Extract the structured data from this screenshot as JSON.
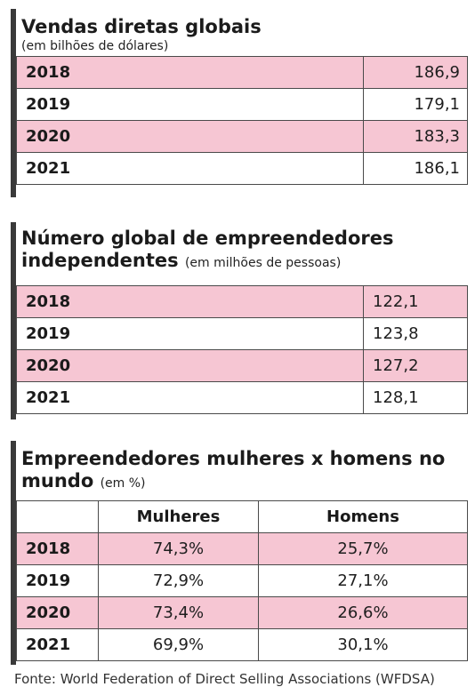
{
  "sales": {
    "title": "Vendas diretas globais",
    "subtitle": "(em bilhões de dólares)",
    "rows": [
      {
        "year": "2018",
        "value": "186,9"
      },
      {
        "year": "2019",
        "value": "179,1"
      },
      {
        "year": "2020",
        "value": "183,3"
      },
      {
        "year": "2021",
        "value": "186,1"
      }
    ]
  },
  "entrepreneurs": {
    "title_line1": "Número global de empreendedores",
    "title_line2": "independentes",
    "subtitle": "(em milhões de pessoas)",
    "rows": [
      {
        "year": "2018",
        "value": "122,1"
      },
      {
        "year": "2019",
        "value": "123,8"
      },
      {
        "year": "2020",
        "value": "127,2"
      },
      {
        "year": "2021",
        "value": "128,1"
      }
    ]
  },
  "gender": {
    "title_line1": "Empreendedores mulheres x homens no",
    "title_line2": "mundo",
    "subtitle": "(em %)",
    "col_women": "Mulheres",
    "col_men": "Homens",
    "rows": [
      {
        "year": "2018",
        "women": "74,3%",
        "men": "25,7%"
      },
      {
        "year": "2019",
        "women": "72,9%",
        "men": "27,1%"
      },
      {
        "year": "2020",
        "women": "73,4%",
        "men": "26,6%"
      },
      {
        "year": "2021",
        "women": "69,9%",
        "men": "30,1%"
      }
    ]
  },
  "source": "Fonte: World Federation of Direct Selling Associations (WFDSA)",
  "colors": {
    "row_highlight": "#f6c6d3",
    "border": "#3a3a3a"
  }
}
